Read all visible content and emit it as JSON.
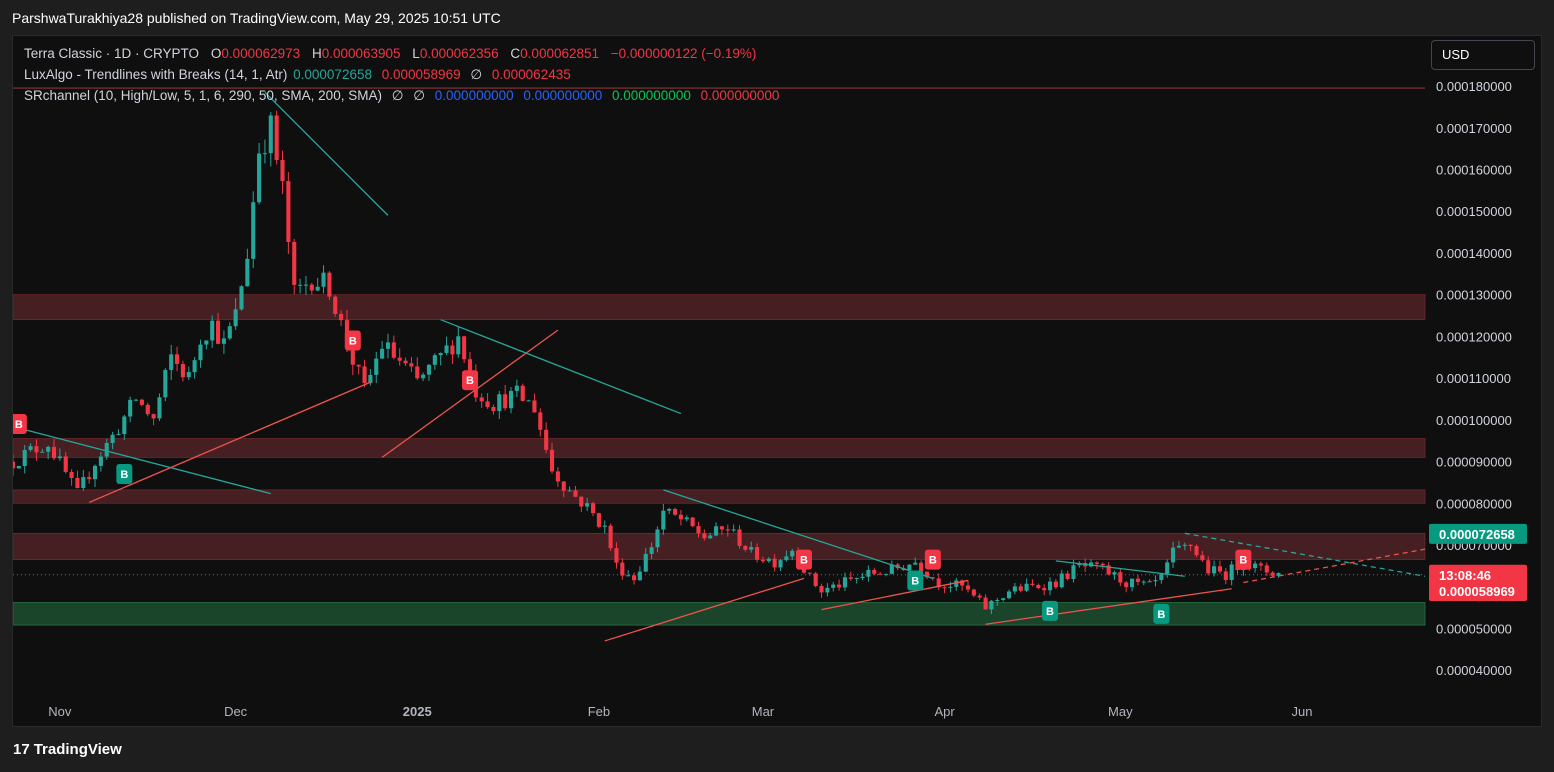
{
  "header": {
    "publish_line": "ParshwaTurakhiya28 published on TradingView.com, May 29, 2025 10:51 UTC"
  },
  "legend": {
    "symbol": "Terra Classic · 1D · CRYPTO",
    "o_label": "O",
    "o_value": "0.000062973",
    "h_label": "H",
    "h_value": "0.000063905",
    "l_label": "L",
    "l_value": "0.000062356",
    "c_label": "C",
    "c_value": "0.000062851",
    "change": "−0.000000122 (−0.19%)",
    "lux_name": "LuxAlgo - Trendlines with Breaks (14, 1, Atr)",
    "lux_v1": "0.000072658",
    "lux_v2": "0.000058969",
    "lux_sep": "∅",
    "lux_v3": "0.000062435",
    "sr_name": "SRchannel (10, High/Low, 5, 1, 6, 290, 50, SMA, 200, SMA)",
    "sr_sep1": "∅",
    "sr_sep2": "∅",
    "sr_v1": "0.000000000",
    "sr_v2": "0.000000000",
    "sr_v3": "0.000000000",
    "sr_v4": "0.000000000"
  },
  "currency_button": "USD",
  "footer": {
    "logo_mark": "17",
    "logo_text": "TradingView"
  },
  "colors": {
    "up": "#26a69a",
    "down": "#f23645",
    "resistance_zone": "#4a2123",
    "support_zone": "#1b4a2c",
    "trend_teal": "#26a69a",
    "trend_red": "#ef5350"
  },
  "chart_data": {
    "type": "candlestick",
    "symbol": "Terra Classic",
    "interval": "1D",
    "ylim": [
      3.5e-05,
      0.000192
    ],
    "y_ticks": [
      "0.000040000",
      "0.000050000",
      "0.000060000",
      "0.000070000",
      "0.000080000",
      "0.000090000",
      "0.000100000",
      "0.000110000",
      "0.000120000",
      "0.000130000",
      "0.000140000",
      "0.000150000",
      "0.000160000",
      "0.000170000",
      "0.000180000"
    ],
    "y_tick_values": [
      4e-05,
      5e-05,
      6e-05,
      7e-05,
      8e-05,
      9e-05,
      0.0001,
      0.00011,
      0.00012,
      0.00013,
      0.00014,
      0.00015,
      0.00016,
      0.00017,
      0.00018
    ],
    "x_ticks": [
      {
        "label": "Nov",
        "date": "2024-11-01"
      },
      {
        "label": "Dec",
        "date": "2024-12-01"
      },
      {
        "label": "2025",
        "date": "2025-01-01",
        "bold": true
      },
      {
        "label": "Feb",
        "date": "2025-02-01"
      },
      {
        "label": "Mar",
        "date": "2025-03-01"
      },
      {
        "label": "Apr",
        "date": "2025-04-01"
      },
      {
        "label": "May",
        "date": "2025-05-01"
      },
      {
        "label": "Jun",
        "date": "2025-06-01"
      }
    ],
    "x_range": [
      "2024-10-24",
      "2025-06-22"
    ],
    "price_path": [
      [
        "2024-10-24",
        9e-05
      ],
      [
        "2024-10-27",
        9.25e-05
      ],
      [
        "2024-10-30",
        9.45e-05
      ],
      [
        "2024-11-02",
        8.7e-05
      ],
      [
        "2024-11-04",
        8.2e-05
      ],
      [
        "2024-11-07",
        9e-05
      ],
      [
        "2024-11-10",
        9.6e-05
      ],
      [
        "2024-11-14",
        0.000105
      ],
      [
        "2024-11-17",
        0.0001
      ],
      [
        "2024-11-20",
        0.000115
      ],
      [
        "2024-11-23",
        0.00011
      ],
      [
        "2024-11-25",
        0.00012
      ],
      [
        "2024-11-27",
        0.000123
      ],
      [
        "2024-11-29",
        0.000118
      ],
      [
        "2024-12-01",
        0.000125
      ],
      [
        "2024-12-03",
        0.00014
      ],
      [
        "2024-12-05",
        0.000165
      ],
      [
        "2024-12-07",
        0.00017
      ],
      [
        "2024-12-09",
        0.000155
      ],
      [
        "2024-12-11",
        0.00013
      ],
      [
        "2024-12-14",
        0.000134
      ],
      [
        "2024-12-17",
        0.000132
      ],
      [
        "2024-12-20",
        0.000118
      ],
      [
        "2024-12-23",
        0.000107
      ],
      [
        "2024-12-26",
        0.000118
      ],
      [
        "2024-12-29",
        0.000114
      ],
      [
        "2025-01-01",
        0.000109
      ],
      [
        "2025-01-05",
        0.000115
      ],
      [
        "2025-01-08",
        0.00012
      ],
      [
        "2025-01-11",
        0.000107
      ],
      [
        "2025-01-14",
        0.000104
      ],
      [
        "2025-01-18",
        0.000106
      ],
      [
        "2025-01-21",
        0.000103
      ],
      [
        "2025-01-24",
        8.8e-05
      ],
      [
        "2025-01-27",
        8.3e-05
      ],
      [
        "2025-01-30",
        7.9e-05
      ],
      [
        "2025-02-02",
        7.4e-05
      ],
      [
        "2025-02-04",
        6.5e-05
      ],
      [
        "2025-02-07",
        6.2e-05
      ],
      [
        "2025-02-10",
        7e-05
      ],
      [
        "2025-02-12",
        7.8e-05
      ],
      [
        "2025-02-15",
        7.6e-05
      ],
      [
        "2025-02-19",
        7.2e-05
      ],
      [
        "2025-02-23",
        7.4e-05
      ],
      [
        "2025-02-27",
        6.8e-05
      ],
      [
        "2025-03-03",
        6.6e-05
      ],
      [
        "2025-03-06",
        6.9e-05
      ],
      [
        "2025-03-09",
        6.2e-05
      ],
      [
        "2025-03-11",
        5.9e-05
      ],
      [
        "2025-03-15",
        6.1e-05
      ],
      [
        "2025-03-19",
        6.3e-05
      ],
      [
        "2025-03-23",
        6.4e-05
      ],
      [
        "2025-03-27",
        6.6e-05
      ],
      [
        "2025-03-31",
        6.1e-05
      ],
      [
        "2025-04-04",
        6e-05
      ],
      [
        "2025-04-08",
        5.5e-05
      ],
      [
        "2025-04-12",
        5.9e-05
      ],
      [
        "2025-04-16",
        6e-05
      ],
      [
        "2025-04-20",
        6.1e-05
      ],
      [
        "2025-04-24",
        6.5e-05
      ],
      [
        "2025-04-28",
        6.4e-05
      ],
      [
        "2025-05-02",
        6.1e-05
      ],
      [
        "2025-05-06",
        6e-05
      ],
      [
        "2025-05-08",
        6.2e-05
      ],
      [
        "2025-05-10",
        6.8e-05
      ],
      [
        "2025-05-13",
        7e-05
      ],
      [
        "2025-05-16",
        6.4e-05
      ],
      [
        "2025-05-19",
        6.3e-05
      ],
      [
        "2025-05-22",
        6.6e-05
      ],
      [
        "2025-05-25",
        6.4e-05
      ],
      [
        "2025-05-28",
        6.32e-05
      ]
    ],
    "zones": [
      {
        "kind": "resistance",
        "low": 0.000124,
        "high": 0.00013
      },
      {
        "kind": "resistance",
        "low": 9.1e-05,
        "high": 9.55e-05
      },
      {
        "kind": "resistance",
        "low": 8e-05,
        "high": 8.32e-05
      },
      {
        "kind": "resistance",
        "low": 6.65e-05,
        "high": 7.28e-05
      },
      {
        "kind": "support",
        "low": 5.08e-05,
        "high": 5.62e-05
      }
    ],
    "trendlines": [
      {
        "color": "teal",
        "from": [
          "2024-10-25",
          9.8e-05
        ],
        "to": [
          "2024-12-07",
          8.23e-05
        ]
      },
      {
        "color": "red",
        "from": [
          "2024-11-06",
          8.02e-05
        ],
        "to": [
          "2024-12-24",
          0.000109
        ]
      },
      {
        "color": "teal",
        "from": [
          "2024-12-06",
          0.0001785
        ],
        "to": [
          "2024-12-27",
          0.000149
        ]
      },
      {
        "color": "red",
        "from": [
          "2024-12-26",
          9.1e-05
        ],
        "to": [
          "2025-01-25",
          0.0001215
        ]
      },
      {
        "color": "teal",
        "from": [
          "2025-01-05",
          0.000124
        ],
        "to": [
          "2025-02-15",
          0.0001015
        ]
      },
      {
        "color": "red",
        "from": [
          "2025-02-02",
          4.7e-05
        ],
        "to": [
          "2025-03-08",
          6.2e-05
        ]
      },
      {
        "color": "teal",
        "from": [
          "2025-02-12",
          8.32e-05
        ],
        "to": [
          "2025-03-30",
          6.2e-05
        ]
      },
      {
        "color": "red",
        "from": [
          "2025-03-11",
          5.45e-05
        ],
        "to": [
          "2025-04-05",
          6.15e-05
        ]
      },
      {
        "color": "teal",
        "from": [
          "2025-04-20",
          6.62e-05
        ],
        "to": [
          "2025-05-12",
          6.25e-05
        ]
      },
      {
        "color": "red",
        "from": [
          "2025-04-08",
          5.1e-05
        ],
        "to": [
          "2025-05-20",
          5.95e-05
        ]
      },
      {
        "color": "teal",
        "from": [
          "2025-05-12",
          7.28e-05
        ],
        "to": [
          "2025-06-22",
          6.25e-05
        ],
        "dashed": true
      },
      {
        "color": "red",
        "from": [
          "2025-05-22",
          6.1e-05
        ],
        "to": [
          "2025-06-22",
          6.9e-05
        ],
        "dashed": true
      }
    ],
    "signals": [
      {
        "label": "B",
        "kind": "red",
        "date": "2024-10-25",
        "price": 9.9e-05
      },
      {
        "label": "B",
        "kind": "teal",
        "date": "2024-11-12",
        "price": 8.7e-05
      },
      {
        "label": "B",
        "kind": "red",
        "date": "2024-12-21",
        "price": 0.000119
      },
      {
        "label": "B",
        "kind": "red",
        "date": "2025-01-10",
        "price": 0.0001095
      },
      {
        "label": "B",
        "kind": "red",
        "date": "2025-03-08",
        "price": 6.65e-05
      },
      {
        "label": "B",
        "kind": "teal",
        "date": "2025-03-27",
        "price": 6.15e-05
      },
      {
        "label": "B",
        "kind": "red",
        "date": "2025-03-30",
        "price": 6.65e-05
      },
      {
        "label": "B",
        "kind": "teal",
        "date": "2025-04-19",
        "price": 5.42e-05
      },
      {
        "label": "B",
        "kind": "teal",
        "date": "2025-05-08",
        "price": 5.35e-05
      },
      {
        "label": "B",
        "kind": "red",
        "date": "2025-05-22",
        "price": 6.65e-05
      }
    ],
    "current_price": 6.2851e-05,
    "price_labels": [
      {
        "text": "0.000072658",
        "price": 7.2658e-05,
        "bg": "#089981",
        "fg": "#ffffff"
      },
      {
        "text": "13:08:46",
        "price": 6.2851e-05,
        "bg": "#f23645",
        "fg": "#ffffff"
      },
      {
        "text": "0.000058969",
        "price": 5.8969e-05,
        "bg": "#f23645",
        "fg": "#ffffff"
      }
    ]
  }
}
